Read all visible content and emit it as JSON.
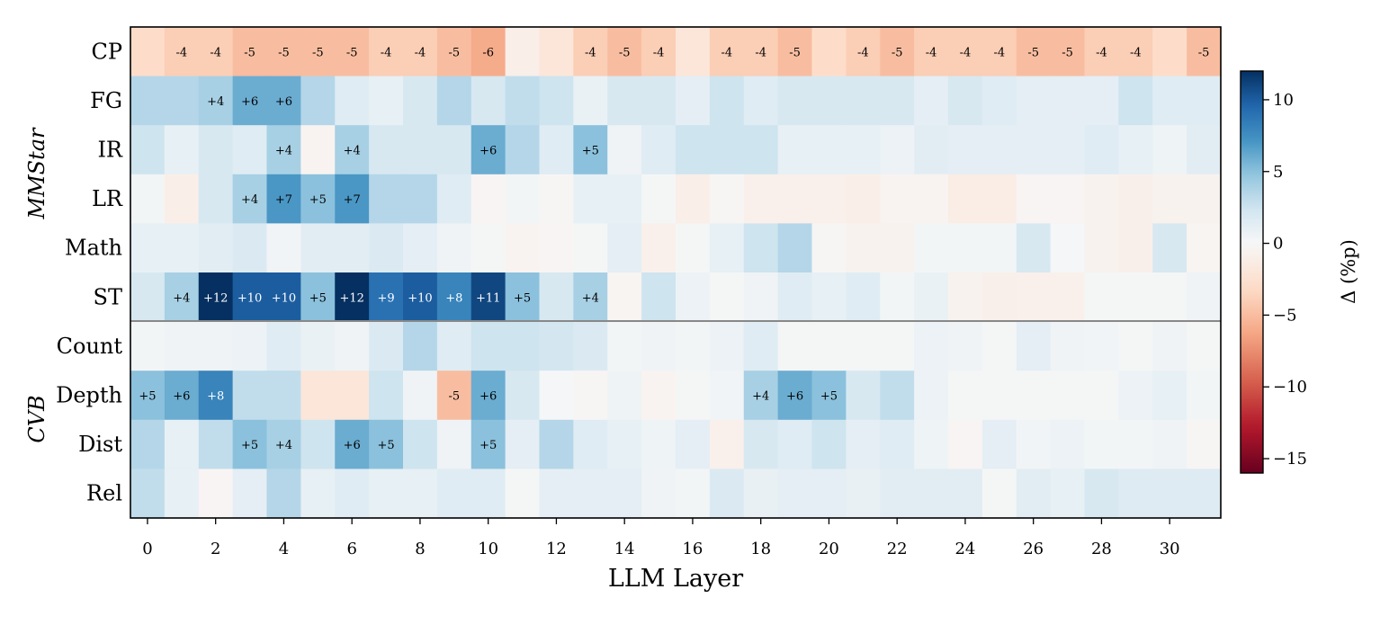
{
  "chart_data": {
    "type": "heatmap",
    "title": "",
    "xlabel": "LLM Layer",
    "colorbar_label": "Δ (%p)",
    "colormap": "RdBu (diverging, red = negative, blue = positive)",
    "color_range": [
      -16,
      12
    ],
    "colorbar_ticks": [
      10,
      5,
      0,
      -5,
      -10,
      -15
    ],
    "colorbar_tick_labels": [
      "10",
      "5",
      "0",
      "−5",
      "−10",
      "−15"
    ],
    "x_ticks": [
      0,
      2,
      4,
      6,
      8,
      10,
      12,
      14,
      16,
      18,
      20,
      22,
      24,
      26,
      28,
      30
    ],
    "x": [
      0,
      1,
      2,
      3,
      4,
      5,
      6,
      7,
      8,
      9,
      10,
      11,
      12,
      13,
      14,
      15,
      16,
      17,
      18,
      19,
      20,
      21,
      22,
      23,
      24,
      25,
      26,
      27,
      28,
      29,
      30,
      31
    ],
    "groups": [
      {
        "name": "MMStar",
        "rows": [
          "CP",
          "FG",
          "IR",
          "LR",
          "Math",
          "ST"
        ]
      },
      {
        "name": "CVB",
        "rows": [
          "Count",
          "Depth",
          "Dist",
          "Rel"
        ]
      }
    ],
    "rows": [
      "CP",
      "FG",
      "IR",
      "LR",
      "Math",
      "ST",
      "Count",
      "Depth",
      "Dist",
      "Rel"
    ],
    "values": [
      [
        -3,
        -4,
        -4,
        -5,
        -5,
        -5,
        -5,
        -4,
        -4,
        -5,
        -6,
        -1,
        -2,
        -4,
        -5,
        -4,
        -2,
        -4,
        -4,
        -5,
        -3,
        -4,
        -5,
        -4,
        -4,
        -4,
        -5,
        -5,
        -4,
        -4,
        -3,
        -5
      ],
      [
        3.5,
        3.5,
        4,
        6,
        6,
        3.5,
        1.5,
        1,
        2,
        3.5,
        2,
        3,
        2.5,
        0.8,
        2,
        2,
        1.2,
        2.5,
        1.5,
        2,
        2,
        2,
        2,
        1.2,
        2,
        1.5,
        1.2,
        1.2,
        1.2,
        2.5,
        1.5,
        1.5
      ],
      [
        2.5,
        1,
        2,
        1.5,
        4,
        -0.5,
        4,
        2,
        2,
        2,
        6,
        3.5,
        1.5,
        5,
        0.5,
        1.5,
        2.5,
        2.5,
        2.5,
        1,
        1,
        1,
        0.7,
        1.3,
        1.2,
        1.2,
        1.2,
        1.2,
        1.5,
        1,
        0.6,
        1.3
      ],
      [
        0.3,
        -1,
        2,
        4,
        7,
        5,
        7,
        3.5,
        3.5,
        1.5,
        -0.3,
        0.3,
        -0.2,
        1,
        1,
        0.2,
        -1,
        -0.2,
        -0.8,
        -0.8,
        -0.8,
        -1,
        -0.5,
        -0.5,
        -1.2,
        -1.2,
        -0.3,
        -0.3,
        -0.6,
        -0.9,
        -0.6,
        -0.6
      ],
      [
        1,
        1,
        1.3,
        1.8,
        0.4,
        1.3,
        1.3,
        1.8,
        1.2,
        0.5,
        0.2,
        -0.5,
        -0.3,
        0.2,
        1.2,
        -0.8,
        0.2,
        1,
        2.5,
        3.5,
        -0.2,
        -0.6,
        -0.6,
        0.3,
        0.3,
        0.3,
        2,
        0.1,
        -0.6,
        -0.9,
        2,
        -0.4
      ],
      [
        2,
        4,
        12,
        10,
        10,
        5,
        12,
        9,
        10,
        8,
        11,
        5,
        2,
        4,
        -0.4,
        2.5,
        0.7,
        0.2,
        0.5,
        1.5,
        1,
        1.5,
        0.3,
        0.8,
        -0.6,
        -0.9,
        -0.8,
        -0.8,
        0.2,
        0.2,
        0.2,
        0.5
      ],
      [
        0.3,
        0.5,
        0.5,
        0.7,
        1.5,
        0.8,
        0.5,
        1.8,
        3.5,
        1.5,
        2.5,
        2.5,
        2.2,
        1.8,
        0.3,
        0.5,
        0.3,
        0.7,
        1.5,
        0.2,
        0.2,
        0.2,
        0.2,
        0.7,
        0.5,
        0.2,
        1.2,
        0.5,
        0.4,
        0.2,
        0.5,
        0.2
      ],
      [
        5,
        6,
        8,
        3,
        3,
        -2,
        -2,
        2.5,
        0.5,
        -5,
        6,
        2,
        0.1,
        -0.2,
        0.6,
        -0.5,
        0.2,
        0.4,
        4,
        6,
        5,
        2,
        3,
        0.7,
        0.2,
        0.2,
        0.2,
        0.2,
        0.2,
        0.7,
        1,
        0.3
      ],
      [
        3.5,
        1,
        3,
        5,
        4,
        2.5,
        6,
        5,
        2.5,
        0.5,
        5,
        1.2,
        3.5,
        1.5,
        1,
        0.6,
        1.2,
        -0.8,
        2,
        1.5,
        2.5,
        1.2,
        1.5,
        0.6,
        -0.3,
        1.2,
        0.4,
        0.7,
        0.3,
        0.3,
        0.5,
        -0.2
      ],
      [
        3,
        1,
        -0.3,
        1.2,
        3.5,
        1,
        1.5,
        1,
        1,
        1.5,
        1.5,
        0.2,
        1.2,
        1.2,
        1.2,
        0.5,
        0.3,
        1.8,
        0.9,
        1.2,
        1.2,
        0.9,
        1.3,
        1.3,
        1.3,
        0.2,
        1.3,
        1,
        2,
        1.6,
        1.6,
        1.6
      ]
    ],
    "cell_labels": [
      [
        "",
        "-4",
        "-4",
        "-5",
        "-5",
        "-5",
        "-5",
        "-4",
        "-4",
        "-5",
        "-6",
        "",
        "",
        "-4",
        "-5",
        "-4",
        "",
        "-4",
        "-4",
        "-5",
        "",
        "-4",
        "-5",
        "-4",
        "-4",
        "-4",
        "-5",
        "-5",
        "-4",
        "-4",
        "",
        "-5"
      ],
      [
        "",
        "",
        "+4",
        "+6",
        "+6",
        "",
        "",
        "",
        "",
        "",
        "",
        "",
        "",
        "",
        "",
        "",
        "",
        "",
        "",
        "",
        "",
        "",
        "",
        "",
        "",
        "",
        "",
        "",
        "",
        "",
        "",
        ""
      ],
      [
        "",
        "",
        "",
        "",
        "+4",
        "",
        "+4",
        "",
        "",
        "",
        "+6",
        "",
        "",
        "+5",
        "",
        "",
        "",
        "",
        "",
        "",
        "",
        "",
        "",
        "",
        "",
        "",
        "",
        "",
        "",
        "",
        "",
        ""
      ],
      [
        "",
        "",
        "",
        "+4",
        "+7",
        "+5",
        "+7",
        "",
        "",
        "",
        "",
        "",
        "",
        "",
        "",
        "",
        "",
        "",
        "",
        "",
        "",
        "",
        "",
        "",
        "",
        "",
        "",
        "",
        "",
        "",
        "",
        ""
      ],
      [
        "",
        "",
        "",
        "",
        "",
        "",
        "",
        "",
        "",
        "",
        "",
        "",
        "",
        "",
        "",
        "",
        "",
        "",
        "",
        "",
        "",
        "",
        "",
        "",
        "",
        "",
        "",
        "",
        "",
        "",
        "",
        ""
      ],
      [
        "",
        "+4",
        "+12",
        "+10",
        "+10",
        "+5",
        "+12",
        "+9",
        "+10",
        "+8",
        "+11",
        "+5",
        "",
        "+4",
        "",
        "",
        "",
        "",
        "",
        "",
        "",
        "",
        "",
        "",
        "",
        "",
        "",
        "",
        "",
        "",
        "",
        ""
      ],
      [
        "",
        "",
        "",
        "",
        "",
        "",
        "",
        "",
        "",
        "",
        "",
        "",
        "",
        "",
        "",
        "",
        "",
        "",
        "",
        "",
        "",
        "",
        "",
        "",
        "",
        "",
        "",
        "",
        "",
        "",
        "",
        ""
      ],
      [
        "+5",
        "+6",
        "+8",
        "",
        "",
        "",
        "",
        "",
        "",
        "-5",
        "+6",
        "",
        "",
        "",
        "",
        "",
        "",
        "",
        "+4",
        "+6",
        "+5",
        "",
        "",
        "",
        "",
        "",
        "",
        "",
        "",
        "",
        "",
        ""
      ],
      [
        "",
        "",
        "",
        "+5",
        "+4",
        "",
        "+6",
        "+5",
        "",
        "",
        "+5",
        "",
        "",
        "",
        "",
        "",
        "",
        "",
        "",
        "",
        "",
        "",
        "",
        "",
        "",
        "",
        "",
        "",
        "",
        "",
        "",
        ""
      ],
      [
        "",
        "",
        "",
        "",
        "",
        "",
        "",
        "",
        "",
        "",
        "",
        "",
        "",
        "",
        "",
        "",
        "",
        "",
        "",
        "",
        "",
        "",
        "",
        "",
        "",
        "",
        "",
        "",
        "",
        "",
        "",
        ""
      ]
    ]
  }
}
